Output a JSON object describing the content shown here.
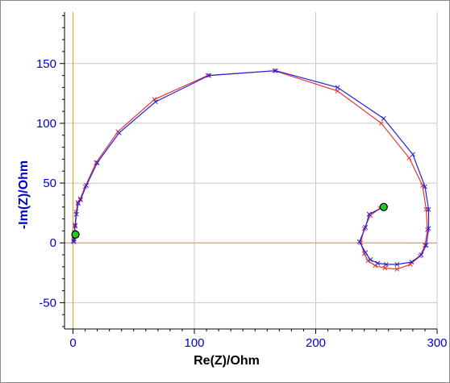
{
  "chart_data": {
    "type": "line",
    "title": "",
    "xlabel": "Re(Z)/Ohm",
    "ylabel": "-Im(Z)/Ohm",
    "xlim": [
      -7,
      300
    ],
    "ylim": [
      -72,
      193
    ],
    "x_ticks": [
      0,
      100,
      200,
      300
    ],
    "y_ticks": [
      -50,
      0,
      50,
      100,
      150
    ],
    "grid": true,
    "legend": "none",
    "colors": {
      "blue": "#2222dd",
      "red": "#ee3333",
      "axis_text": "#0000cc",
      "grid": "#c8c8c8",
      "zero_line": "#d4a020",
      "endpoint_fill": "#22cc22"
    },
    "series": [
      {
        "color": "#2222dd",
        "x": [
          0.5,
          0.8,
          1.2,
          1.8,
          2.8,
          4.3,
          6.2,
          11,
          20,
          38,
          68,
          112,
          167,
          218,
          256,
          280,
          290,
          293,
          293,
          291,
          287,
          279,
          267,
          258,
          251,
          245,
          241,
          236,
          241,
          244,
          256
        ],
        "y": [
          1,
          3,
          8,
          14,
          24,
          33,
          36,
          48,
          67,
          92,
          118,
          140,
          144,
          130,
          104,
          74,
          47,
          28,
          12,
          -2,
          -10,
          -16,
          -18,
          -18,
          -17,
          -14,
          -8,
          1,
          13,
          24,
          30
        ]
      },
      {
        "color": "#ee3333",
        "x": [
          0.4,
          0.7,
          1.1,
          1.7,
          2.6,
          4.0,
          6.0,
          10,
          19,
          37,
          67,
          111,
          166,
          218,
          254,
          277,
          288,
          291,
          292,
          290,
          286,
          278,
          267,
          257,
          249,
          243,
          240,
          237,
          240,
          245,
          253
        ],
        "y": [
          2,
          4,
          9,
          15,
          26,
          34,
          37,
          47,
          67,
          93,
          120,
          140,
          144,
          127,
          100,
          71,
          48,
          28,
          11,
          -2,
          -11,
          -18,
          -22,
          -21,
          -19,
          -15,
          -9,
          0,
          12,
          23,
          29
        ]
      }
    ],
    "endpoints": [
      {
        "x": 2,
        "y": 7
      },
      {
        "x": 256,
        "y": 30
      }
    ]
  }
}
